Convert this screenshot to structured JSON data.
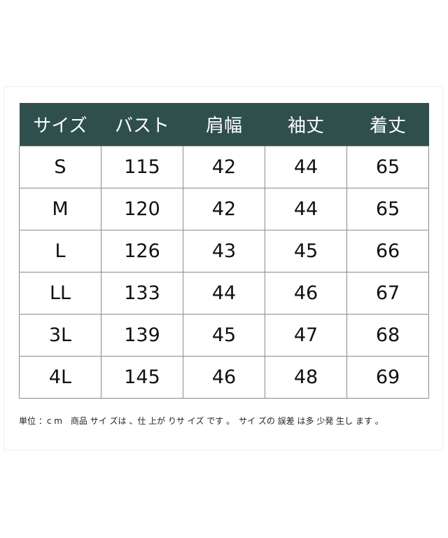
{
  "table": {
    "headers": [
      "サイズ",
      "バスト",
      "肩幅",
      "袖丈",
      "着丈"
    ],
    "rows": [
      [
        "S",
        "115",
        "42",
        "44",
        "65"
      ],
      [
        "M",
        "120",
        "42",
        "44",
        "65"
      ],
      [
        "L",
        "126",
        "43",
        "45",
        "66"
      ],
      [
        "LL",
        "133",
        "44",
        "46",
        "67"
      ],
      [
        "3L",
        "139",
        "45",
        "47",
        "68"
      ],
      [
        "4L",
        "145",
        "46",
        "48",
        "69"
      ]
    ]
  },
  "note": "単位 ：c m　商品 サイ ズは 、仕 上が りサ イズ です 。　サイ ズの 誤差 は多 少発 生し ます 。",
  "colors": {
    "header_bg": "#2f4f4c"
  }
}
